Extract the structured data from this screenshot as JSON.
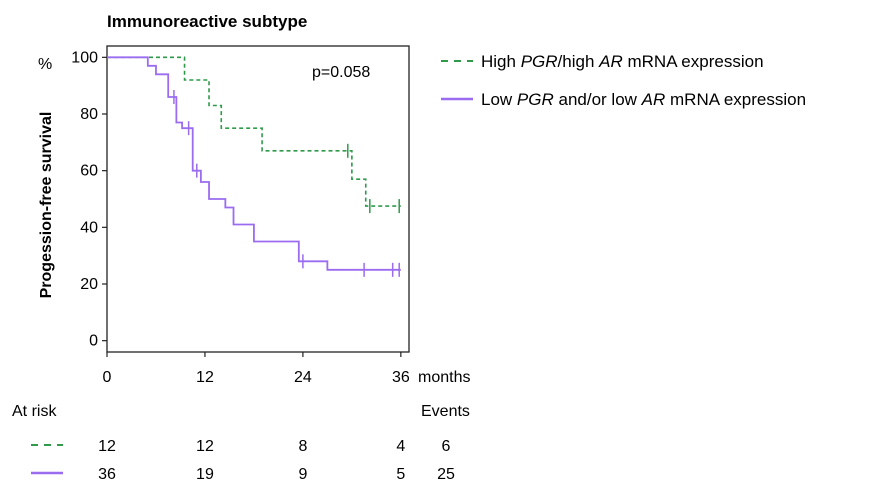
{
  "chart_data": {
    "type": "line",
    "title": "Immunoreactive subtype",
    "ylabel": "Progession-free survival",
    "y_unit": "%",
    "x_unit": "months",
    "xlim": [
      0,
      37
    ],
    "ylim": [
      -4,
      104
    ],
    "x_ticks": [
      0,
      12,
      24,
      36
    ],
    "y_ticks": [
      0,
      20,
      40,
      60,
      80,
      100
    ],
    "grid": false,
    "legend_position": "right",
    "annotation": "p=0.058",
    "series": [
      {
        "name_parts": [
          {
            "text": "High ",
            "italic": false
          },
          {
            "text": "PGR",
            "italic": true
          },
          {
            "text": "/high ",
            "italic": false
          },
          {
            "text": "AR",
            "italic": true
          },
          {
            "text": " mRNA expression",
            "italic": false
          }
        ],
        "color": "#2e9a4a",
        "style": "dashed",
        "steps": [
          [
            0,
            100
          ],
          [
            9.5,
            92
          ],
          [
            12.5,
            83
          ],
          [
            14,
            75
          ],
          [
            19,
            67
          ],
          [
            30,
            57
          ],
          [
            31.7,
            47.5
          ],
          [
            36,
            47.5
          ]
        ],
        "censored": [
          [
            29.5,
            67
          ],
          [
            32.2,
            47.5
          ],
          [
            35.8,
            47.5
          ]
        ]
      },
      {
        "name_parts": [
          {
            "text": "Low ",
            "italic": false
          },
          {
            "text": "PGR",
            "italic": true
          },
          {
            "text": " and/or low ",
            "italic": false
          },
          {
            "text": "AR",
            "italic": true
          },
          {
            "text": " mRNA expression",
            "italic": false
          }
        ],
        "color": "#9b6cf0",
        "style": "solid",
        "steps": [
          [
            0,
            100
          ],
          [
            5,
            97
          ],
          [
            6,
            94
          ],
          [
            7.5,
            86
          ],
          [
            8.5,
            77
          ],
          [
            9.2,
            75
          ],
          [
            10.5,
            60
          ],
          [
            11.5,
            56
          ],
          [
            12.5,
            50
          ],
          [
            14.5,
            47
          ],
          [
            15.5,
            41
          ],
          [
            18,
            35
          ],
          [
            23.5,
            28
          ],
          [
            27,
            25
          ],
          [
            36,
            25
          ]
        ],
        "censored": [
          [
            8.2,
            86
          ],
          [
            10,
            75
          ],
          [
            11,
            60
          ],
          [
            24,
            28
          ],
          [
            31.5,
            25
          ],
          [
            35,
            25
          ],
          [
            35.8,
            25
          ]
        ]
      }
    ],
    "at_risk": {
      "label": "At risk",
      "events_label": "Events",
      "times": [
        0,
        12,
        24,
        36
      ],
      "rows": [
        {
          "series": 0,
          "counts": [
            12,
            12,
            8,
            4
          ],
          "events": 6
        },
        {
          "series": 1,
          "counts": [
            36,
            19,
            9,
            5
          ],
          "events": 25
        }
      ]
    }
  }
}
